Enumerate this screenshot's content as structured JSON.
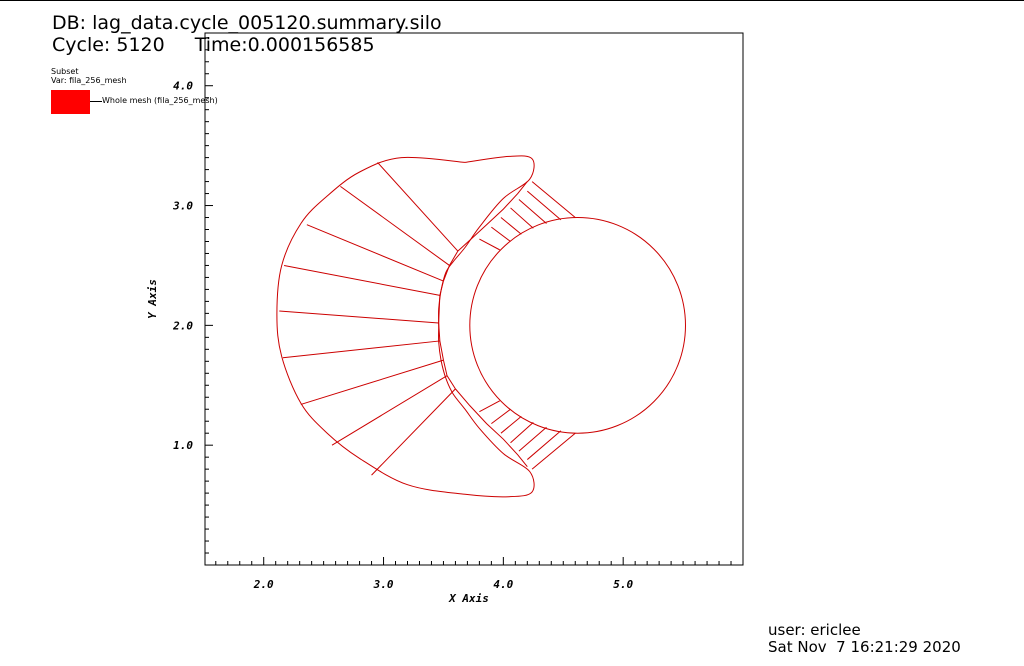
{
  "header": {
    "db": "DB: lag_data.cycle_005120.summary.silo",
    "cycle": "Cycle: 5120",
    "time": "Time:0.000156585"
  },
  "legend": {
    "title_line1": "Subset",
    "title_line2": "Var: fila_256_mesh",
    "entry_label": "Whole mesh (fila_256_mesh)",
    "entry_color": "#ff0000"
  },
  "footer": {
    "user": "user: ericlee",
    "date": "Sat Nov  7 16:21:29 2020"
  },
  "chart_data": {
    "type": "mesh",
    "xlabel": "X Axis",
    "ylabel": "Y Axis",
    "xlim": [
      1.51,
      6.0
    ],
    "ylim": [
      0.0,
      4.44
    ],
    "x_ticks": [
      2.0,
      3.0,
      4.0,
      5.0
    ],
    "x_tick_labels": [
      "2.0",
      "3.0",
      "4.0",
      "5.0"
    ],
    "y_ticks": [
      1.0,
      2.0,
      3.0,
      4.0
    ],
    "y_tick_labels": [
      "1.0",
      "2.0",
      "3.0",
      "4.0"
    ],
    "mesh_color": "#cc0000",
    "circle": {
      "cx": 4.62,
      "cy": 2.0,
      "r": 0.9
    },
    "outer_boundary": [
      [
        3.68,
        3.36
      ],
      [
        4.05,
        3.41
      ],
      [
        4.24,
        3.39
      ],
      [
        4.22,
        3.22
      ],
      [
        4.0,
        3.06
      ],
      [
        3.8,
        2.82
      ],
      [
        3.68,
        2.65
      ],
      [
        3.58,
        2.53
      ],
      [
        3.52,
        2.44
      ],
      [
        3.48,
        2.29
      ],
      [
        3.46,
        2.14
      ],
      [
        3.46,
        2.0
      ],
      [
        3.46,
        1.86
      ],
      [
        3.48,
        1.71
      ],
      [
        3.52,
        1.56
      ],
      [
        3.58,
        1.43
      ],
      [
        3.68,
        1.3
      ],
      [
        3.8,
        1.14
      ],
      [
        4.0,
        0.93
      ],
      [
        4.22,
        0.78
      ],
      [
        4.24,
        0.61
      ],
      [
        4.05,
        0.57
      ],
      [
        3.68,
        0.59
      ],
      [
        3.2,
        0.67
      ],
      [
        2.8,
        0.89
      ],
      [
        2.53,
        1.1
      ],
      [
        2.31,
        1.35
      ],
      [
        2.15,
        1.74
      ],
      [
        2.11,
        2.09
      ],
      [
        2.15,
        2.5
      ],
      [
        2.31,
        2.85
      ],
      [
        2.53,
        3.08
      ],
      [
        2.8,
        3.28
      ],
      [
        3.15,
        3.4
      ],
      [
        3.68,
        3.36
      ]
    ],
    "outer_spokes": [
      [
        [
          2.95,
          3.36
        ],
        [
          3.62,
          2.62
        ]
      ],
      [
        [
          2.64,
          3.16
        ],
        [
          3.55,
          2.5
        ]
      ],
      [
        [
          2.36,
          2.84
        ],
        [
          3.5,
          2.37
        ]
      ],
      [
        [
          2.17,
          2.5
        ],
        [
          3.47,
          2.25
        ]
      ],
      [
        [
          2.13,
          2.12
        ],
        [
          3.46,
          2.02
        ]
      ],
      [
        [
          2.16,
          1.73
        ],
        [
          3.47,
          1.87
        ]
      ],
      [
        [
          2.31,
          1.34
        ],
        [
          3.5,
          1.71
        ]
      ],
      [
        [
          2.57,
          1.0
        ],
        [
          3.53,
          1.58
        ]
      ],
      [
        [
          2.9,
          0.75
        ],
        [
          3.6,
          1.47
        ]
      ]
    ],
    "upper_fan_apex": [
      4.18,
      3.05
    ],
    "upper_fan_ends": [
      [
        4.6,
        2.9
      ],
      [
        4.48,
        2.88
      ],
      [
        4.36,
        2.85
      ],
      [
        4.25,
        2.81
      ],
      [
        4.15,
        2.76
      ],
      [
        4.06,
        2.7
      ],
      [
        3.97,
        2.63
      ]
    ],
    "upper_fan_starts": [
      [
        4.24,
        3.2
      ],
      [
        4.2,
        3.12
      ],
      [
        4.13,
        3.05
      ],
      [
        4.06,
        2.98
      ],
      [
        3.98,
        2.9
      ],
      [
        3.9,
        2.82
      ],
      [
        3.8,
        2.72
      ]
    ],
    "lower_fan_starts": [
      [
        4.24,
        0.8
      ],
      [
        4.2,
        0.88
      ],
      [
        4.13,
        0.95
      ],
      [
        4.06,
        1.02
      ],
      [
        3.98,
        1.1
      ],
      [
        3.9,
        1.18
      ],
      [
        3.8,
        1.28
      ]
    ],
    "lower_fan_ends": [
      [
        4.6,
        1.1
      ],
      [
        4.48,
        1.12
      ],
      [
        4.36,
        1.15
      ],
      [
        4.25,
        1.19
      ],
      [
        4.15,
        1.24
      ],
      [
        4.06,
        1.3
      ],
      [
        3.97,
        1.37
      ]
    ]
  }
}
